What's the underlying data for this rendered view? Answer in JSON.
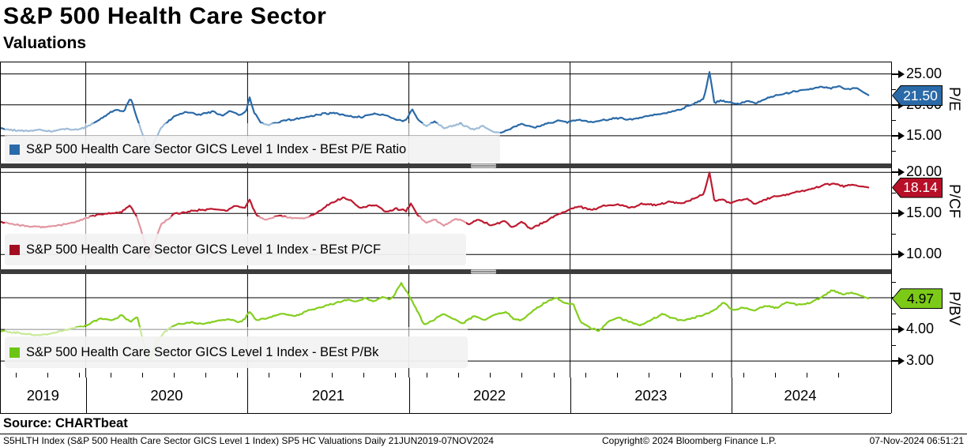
{
  "header": {
    "title": "S&P 500 Health Care Sector",
    "subtitle": "Valuations"
  },
  "source": {
    "label": "Source: CHARTbeat"
  },
  "footer": {
    "left": "S5HLTH Index (S&P 500 Health Care Sector GICS Level 1 Index) SP5 HC Valuations  Daily 21JUN2019-07NOV2024",
    "center": "Copyright© 2024 Bloomberg Finance L.P.",
    "right": "07-Nov-2024 06:51:21"
  },
  "x_axis": {
    "years": [
      "2019",
      "2020",
      "2021",
      "2022",
      "2023",
      "2024"
    ],
    "range": [
      "21JUN2019",
      "07NOV2024"
    ],
    "year_boundaries_frac": [
      0.0987,
      0.2849,
      0.4705,
      0.656,
      0.8418
    ]
  },
  "chart_data": [
    {
      "type": "line",
      "name": "best-pe-ratio",
      "legend": "S&P 500 Health Care Sector GICS Level 1 Index - BEst P/E Ratio",
      "axis_title": "P/E",
      "last_value": "21.50",
      "last_value_num": 21.5,
      "color": "#2a6aa8",
      "swatch_color": "#2a6aa8",
      "badge_color": "#2a6aa8",
      "badge_text_color": "#ffffff",
      "ylim": [
        10.5,
        27.0
      ],
      "yticks": [
        15,
        20,
        25
      ],
      "minor_yticks": [
        12.5,
        17.5,
        22.5
      ],
      "noise_amp": 0.17,
      "series": [
        [
          0,
          16.2
        ],
        [
          0.015,
          15.9
        ],
        [
          0.03,
          15.7
        ],
        [
          0.045,
          15.9
        ],
        [
          0.06,
          15.7
        ],
        [
          0.075,
          16.1
        ],
        [
          0.09,
          16.0
        ],
        [
          0.099,
          16.4
        ],
        [
          0.11,
          17.2
        ],
        [
          0.125,
          18.6
        ],
        [
          0.135,
          19.2
        ],
        [
          0.143,
          19.0
        ],
        [
          0.15,
          21.2
        ],
        [
          0.157,
          18.2
        ],
        [
          0.163,
          15.6
        ],
        [
          0.172,
          12.3
        ],
        [
          0.178,
          14.2
        ],
        [
          0.185,
          16.2
        ],
        [
          0.2,
          18.1
        ],
        [
          0.215,
          18.9
        ],
        [
          0.23,
          18.4
        ],
        [
          0.245,
          18.9
        ],
        [
          0.255,
          18.3
        ],
        [
          0.266,
          19.0
        ],
        [
          0.275,
          18.4
        ],
        [
          0.283,
          18.8
        ],
        [
          0.287,
          21.3
        ],
        [
          0.292,
          18.9
        ],
        [
          0.3,
          17.0
        ],
        [
          0.31,
          16.7
        ],
        [
          0.325,
          17.4
        ],
        [
          0.34,
          17.7
        ],
        [
          0.355,
          18.1
        ],
        [
          0.37,
          18.5
        ],
        [
          0.385,
          18.7
        ],
        [
          0.4,
          18.2
        ],
        [
          0.415,
          18.0
        ],
        [
          0.43,
          18.6
        ],
        [
          0.445,
          18.3
        ],
        [
          0.455,
          17.6
        ],
        [
          0.467,
          17.4
        ],
        [
          0.474,
          19.4
        ],
        [
          0.48,
          17.8
        ],
        [
          0.49,
          16.5
        ],
        [
          0.5,
          17.3
        ],
        [
          0.51,
          16.3
        ],
        [
          0.52,
          16.6
        ],
        [
          0.53,
          16.9
        ],
        [
          0.545,
          16.0
        ],
        [
          0.555,
          16.6
        ],
        [
          0.565,
          15.8
        ],
        [
          0.575,
          15.4
        ],
        [
          0.585,
          16.0
        ],
        [
          0.6,
          16.9
        ],
        [
          0.615,
          16.3
        ],
        [
          0.63,
          17.0
        ],
        [
          0.645,
          17.4
        ],
        [
          0.653,
          17.2
        ],
        [
          0.665,
          17.6
        ],
        [
          0.68,
          17.2
        ],
        [
          0.695,
          17.5
        ],
        [
          0.71,
          17.9
        ],
        [
          0.725,
          17.6
        ],
        [
          0.74,
          18.0
        ],
        [
          0.755,
          18.4
        ],
        [
          0.77,
          18.8
        ],
        [
          0.785,
          19.4
        ],
        [
          0.8,
          20.2
        ],
        [
          0.81,
          21.0
        ],
        [
          0.8165,
          25.4
        ],
        [
          0.822,
          20.3
        ],
        [
          0.83,
          20.7
        ],
        [
          0.84,
          20.4
        ],
        [
          0.85,
          20.1
        ],
        [
          0.86,
          20.6
        ],
        [
          0.87,
          20.3
        ],
        [
          0.88,
          20.9
        ],
        [
          0.89,
          21.4
        ],
        [
          0.9,
          21.7
        ],
        [
          0.915,
          22.2
        ],
        [
          0.93,
          22.5
        ],
        [
          0.945,
          22.9
        ],
        [
          0.955,
          22.7
        ],
        [
          0.965,
          23.0
        ],
        [
          0.975,
          22.5
        ],
        [
          0.985,
          22.8
        ],
        [
          1,
          21.5
        ]
      ]
    },
    {
      "type": "line",
      "name": "best-pcf",
      "legend": "S&P 500 Health Care Sector GICS Level 1 Index - BEst P/CF",
      "axis_title": "P/CF",
      "last_value": "18.14",
      "last_value_num": 18.14,
      "color": "#bd1a30",
      "swatch_color": "#a30d22",
      "badge_color": "#b80f28",
      "badge_text_color": "#ffffff",
      "ylim": [
        8.2,
        20.5
      ],
      "yticks": [
        10,
        15,
        20
      ],
      "minor_yticks": [
        12.5,
        17.5
      ],
      "noise_amp": 0.13,
      "series": [
        [
          0,
          14.0
        ],
        [
          0.02,
          13.6
        ],
        [
          0.04,
          13.4
        ],
        [
          0.055,
          13.3
        ],
        [
          0.07,
          13.6
        ],
        [
          0.085,
          13.9
        ],
        [
          0.099,
          14.4
        ],
        [
          0.115,
          14.9
        ],
        [
          0.13,
          15.0
        ],
        [
          0.14,
          15.2
        ],
        [
          0.15,
          16.0
        ],
        [
          0.158,
          14.4
        ],
        [
          0.165,
          12.0
        ],
        [
          0.172,
          9.4
        ],
        [
          0.178,
          11.5
        ],
        [
          0.185,
          13.6
        ],
        [
          0.2,
          14.9
        ],
        [
          0.215,
          15.2
        ],
        [
          0.23,
          15.4
        ],
        [
          0.245,
          15.6
        ],
        [
          0.26,
          15.3
        ],
        [
          0.27,
          15.9
        ],
        [
          0.281,
          15.6
        ],
        [
          0.287,
          16.7
        ],
        [
          0.295,
          14.8
        ],
        [
          0.305,
          14.2
        ],
        [
          0.32,
          14.7
        ],
        [
          0.335,
          14.5
        ],
        [
          0.35,
          14.4
        ],
        [
          0.365,
          15.1
        ],
        [
          0.38,
          16.2
        ],
        [
          0.395,
          16.9
        ],
        [
          0.405,
          16.5
        ],
        [
          0.415,
          15.6
        ],
        [
          0.43,
          16.1
        ],
        [
          0.445,
          15.2
        ],
        [
          0.455,
          15.6
        ],
        [
          0.467,
          15.3
        ],
        [
          0.473,
          16.2
        ],
        [
          0.48,
          14.9
        ],
        [
          0.49,
          13.8
        ],
        [
          0.5,
          14.3
        ],
        [
          0.51,
          13.5
        ],
        [
          0.525,
          14.4
        ],
        [
          0.54,
          13.7
        ],
        [
          0.55,
          14.3
        ],
        [
          0.565,
          13.5
        ],
        [
          0.58,
          14.1
        ],
        [
          0.59,
          13.3
        ],
        [
          0.6,
          14.0
        ],
        [
          0.61,
          13.1
        ],
        [
          0.625,
          13.9
        ],
        [
          0.64,
          14.8
        ],
        [
          0.653,
          15.4
        ],
        [
          0.665,
          15.9
        ],
        [
          0.68,
          15.4
        ],
        [
          0.695,
          15.9
        ],
        [
          0.71,
          16.1
        ],
        [
          0.725,
          15.7
        ],
        [
          0.74,
          16.2
        ],
        [
          0.755,
          16.0
        ],
        [
          0.77,
          16.4
        ],
        [
          0.785,
          16.2
        ],
        [
          0.8,
          16.9
        ],
        [
          0.81,
          17.4
        ],
        [
          0.8165,
          20.0
        ],
        [
          0.822,
          16.5
        ],
        [
          0.83,
          16.7
        ],
        [
          0.84,
          16.3
        ],
        [
          0.85,
          16.6
        ],
        [
          0.86,
          16.8
        ],
        [
          0.868,
          16.1
        ],
        [
          0.878,
          16.6
        ],
        [
          0.89,
          17.0
        ],
        [
          0.905,
          17.3
        ],
        [
          0.92,
          17.7
        ],
        [
          0.935,
          18.0
        ],
        [
          0.95,
          18.5
        ],
        [
          0.96,
          18.6
        ],
        [
          0.97,
          18.3
        ],
        [
          0.98,
          18.5
        ],
        [
          1,
          18.14
        ]
      ]
    },
    {
      "type": "line",
      "name": "best-pbk",
      "legend": "S&P 500 Health Care Sector GICS Level 1 Index - BEst P/Bk",
      "axis_title": "P/BV",
      "last_value": "4.97",
      "last_value_num": 4.97,
      "color": "#84ce1e",
      "swatch_color": "#6cc514",
      "badge_color": "#7cca18",
      "badge_text_color": "#000000",
      "ylim": [
        2.48,
        5.75
      ],
      "yticks": [
        3,
        4,
        5
      ],
      "minor_yticks": [
        2.5,
        3.5,
        4.5,
        5.5
      ],
      "noise_amp": 0.032,
      "series": [
        [
          0,
          3.95
        ],
        [
          0.02,
          3.9
        ],
        [
          0.04,
          3.82
        ],
        [
          0.055,
          3.85
        ],
        [
          0.07,
          3.95
        ],
        [
          0.085,
          4.05
        ],
        [
          0.099,
          4.12
        ],
        [
          0.115,
          4.35
        ],
        [
          0.13,
          4.28
        ],
        [
          0.14,
          4.45
        ],
        [
          0.15,
          4.25
        ],
        [
          0.158,
          4.4
        ],
        [
          0.165,
          3.6
        ],
        [
          0.172,
          2.95
        ],
        [
          0.18,
          3.6
        ],
        [
          0.19,
          3.95
        ],
        [
          0.205,
          4.18
        ],
        [
          0.22,
          4.22
        ],
        [
          0.235,
          4.18
        ],
        [
          0.25,
          4.28
        ],
        [
          0.265,
          4.32
        ],
        [
          0.275,
          4.24
        ],
        [
          0.281,
          4.3
        ],
        [
          0.287,
          4.56
        ],
        [
          0.295,
          4.3
        ],
        [
          0.31,
          4.38
        ],
        [
          0.325,
          4.5
        ],
        [
          0.34,
          4.42
        ],
        [
          0.355,
          4.6
        ],
        [
          0.37,
          4.72
        ],
        [
          0.385,
          4.82
        ],
        [
          0.4,
          4.95
        ],
        [
          0.41,
          4.88
        ],
        [
          0.42,
          5.0
        ],
        [
          0.43,
          4.87
        ],
        [
          0.44,
          5.02
        ],
        [
          0.45,
          4.95
        ],
        [
          0.462,
          5.45
        ],
        [
          0.47,
          5.1
        ],
        [
          0.478,
          4.7
        ],
        [
          0.488,
          4.15
        ],
        [
          0.5,
          4.3
        ],
        [
          0.51,
          4.5
        ],
        [
          0.52,
          4.35
        ],
        [
          0.532,
          4.18
        ],
        [
          0.545,
          4.42
        ],
        [
          0.558,
          4.3
        ],
        [
          0.57,
          4.48
        ],
        [
          0.582,
          4.55
        ],
        [
          0.592,
          4.32
        ],
        [
          0.6,
          4.3
        ],
        [
          0.615,
          4.62
        ],
        [
          0.63,
          4.9
        ],
        [
          0.64,
          5.0
        ],
        [
          0.648,
          4.85
        ],
        [
          0.653,
          4.82
        ],
        [
          0.66,
          4.78
        ],
        [
          0.668,
          4.25
        ],
        [
          0.678,
          4.05
        ],
        [
          0.69,
          3.95
        ],
        [
          0.7,
          4.25
        ],
        [
          0.712,
          4.38
        ],
        [
          0.725,
          4.22
        ],
        [
          0.737,
          4.12
        ],
        [
          0.75,
          4.32
        ],
        [
          0.762,
          4.48
        ],
        [
          0.775,
          4.35
        ],
        [
          0.787,
          4.28
        ],
        [
          0.8,
          4.38
        ],
        [
          0.81,
          4.45
        ],
        [
          0.82,
          4.58
        ],
        [
          0.833,
          4.85
        ],
        [
          0.843,
          4.6
        ],
        [
          0.855,
          4.68
        ],
        [
          0.868,
          4.6
        ],
        [
          0.88,
          4.75
        ],
        [
          0.893,
          4.68
        ],
        [
          0.905,
          4.85
        ],
        [
          0.918,
          4.78
        ],
        [
          0.93,
          4.82
        ],
        [
          0.945,
          5.02
        ],
        [
          0.958,
          5.25
        ],
        [
          0.97,
          5.1
        ],
        [
          0.98,
          5.17
        ],
        [
          1,
          4.97
        ]
      ]
    }
  ]
}
